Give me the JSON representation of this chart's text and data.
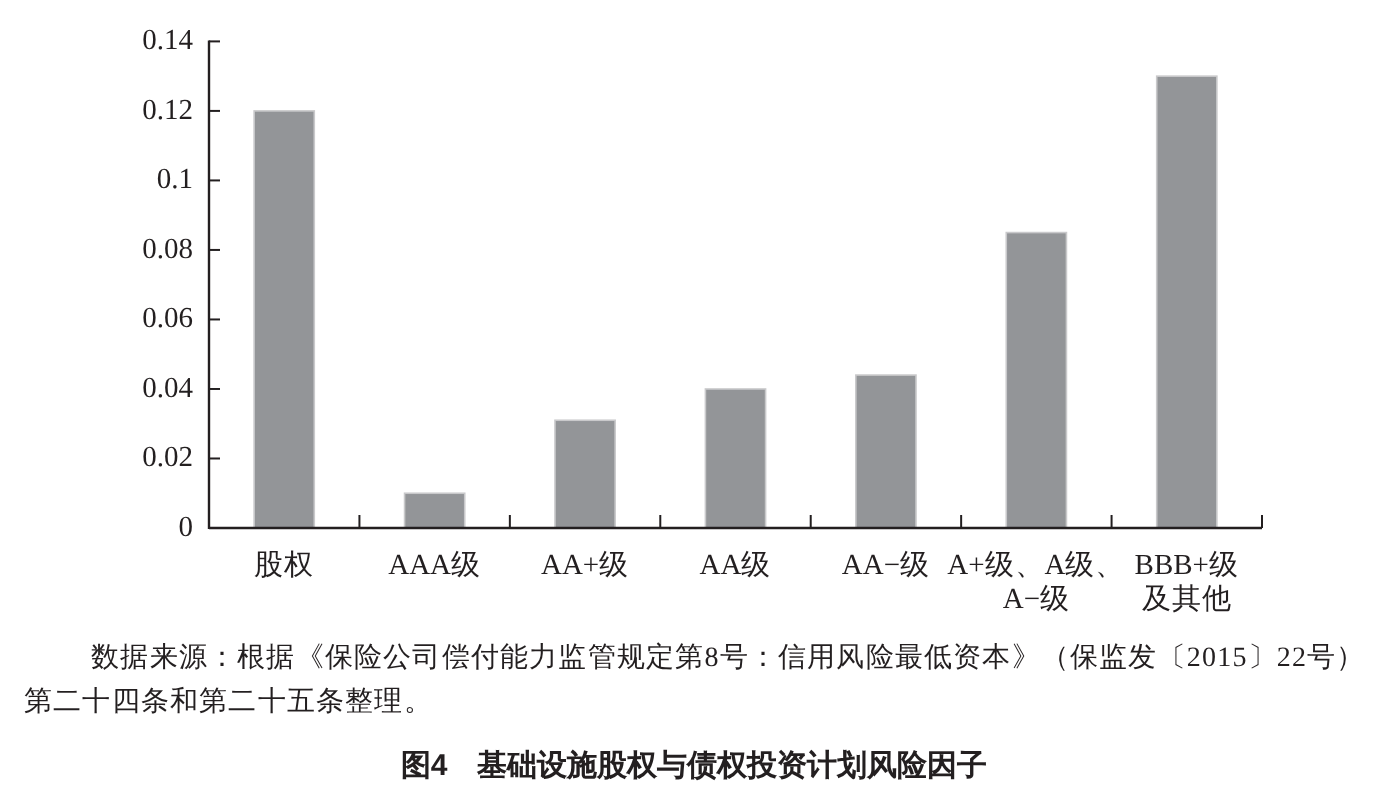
{
  "chart_data": {
    "type": "bar",
    "title": "图4　基础设施股权与债权投资计划风险因子",
    "annotations": [
      "数据来源：根据《保险公司偿付能力监管规定第8号：信用风险最低资本》（保监发〔2015〕22号）第二十四条和第二十五条整理。"
    ],
    "categories": [
      "股权",
      "AAA级",
      "AA+级",
      "AA级",
      "AA−级",
      "A+级、A级、A−级",
      "BBB+级及其他"
    ],
    "values": [
      0.12,
      0.01,
      0.031,
      0.04,
      0.044,
      0.085,
      0.13
    ],
    "color": "#939598",
    "ylim": [
      0,
      0.14
    ],
    "yticks": [
      0,
      0.02,
      0.04,
      0.06,
      0.08,
      0.1,
      0.12,
      0.14
    ]
  }
}
